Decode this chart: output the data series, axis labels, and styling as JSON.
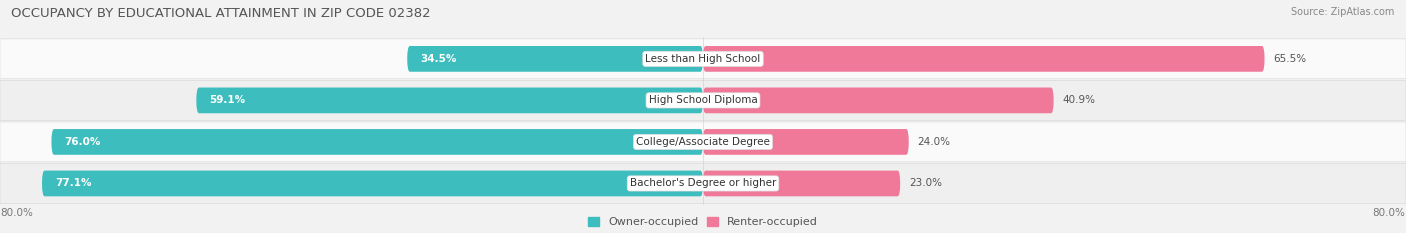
{
  "title": "OCCUPANCY BY EDUCATIONAL ATTAINMENT IN ZIP CODE 02382",
  "source": "Source: ZipAtlas.com",
  "categories": [
    "Less than High School",
    "High School Diploma",
    "College/Associate Degree",
    "Bachelor's Degree or higher"
  ],
  "owner_pct": [
    34.5,
    59.1,
    76.0,
    77.1
  ],
  "renter_pct": [
    65.5,
    40.9,
    24.0,
    23.0
  ],
  "owner_color": "#3dbdbd",
  "renter_color": "#f07898",
  "bg_color": "#f2f2f2",
  "row_colors": [
    "#fafafa",
    "#efefef",
    "#fafafa",
    "#efefef"
  ],
  "xlim_left": -82.0,
  "xlim_right": 82.0,
  "title_fontsize": 9.5,
  "source_fontsize": 7,
  "pct_label_fontsize": 7.5,
  "tick_fontsize": 7.5,
  "legend_fontsize": 8,
  "cat_label_fontsize": 7.5,
  "bar_height": 0.62,
  "owner_label_color_inside": "#ffffff",
  "owner_label_color_outside": "#555555",
  "renter_label_color": "#555555",
  "inside_threshold": 10
}
